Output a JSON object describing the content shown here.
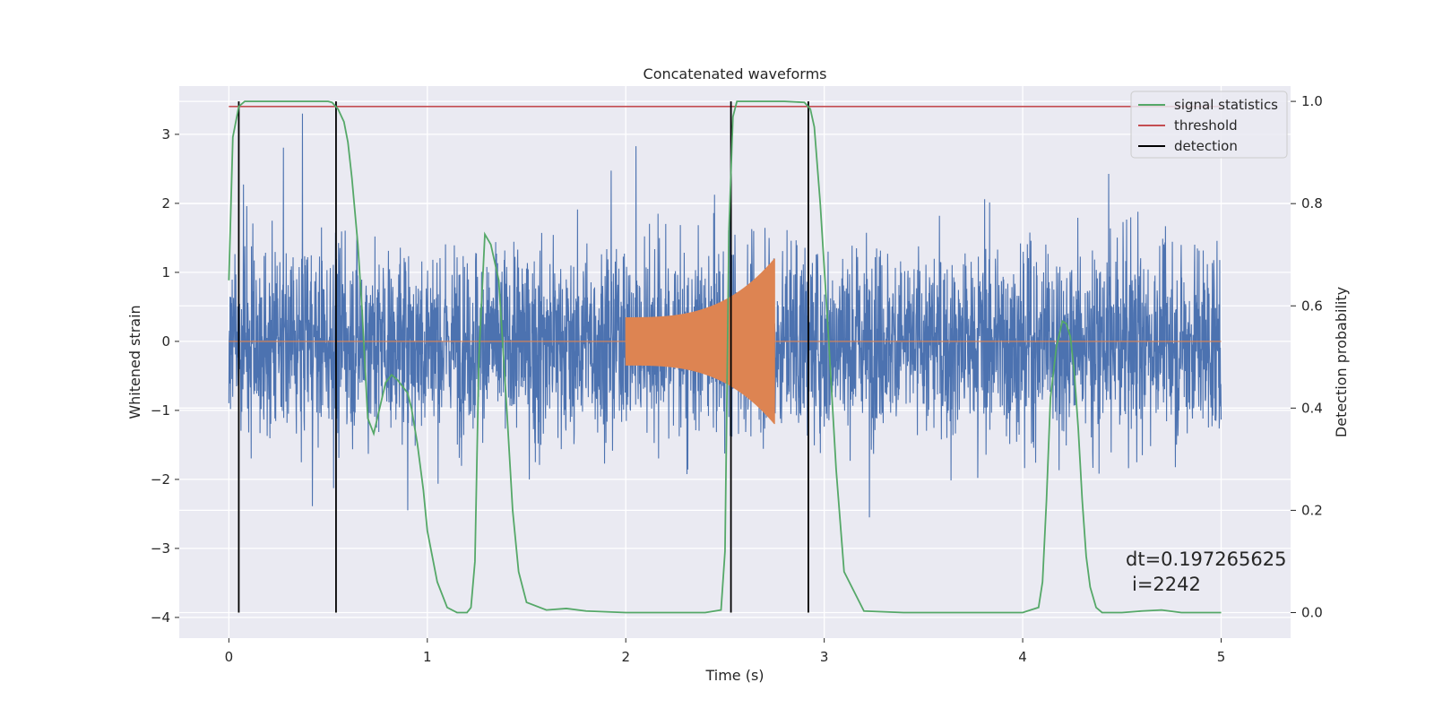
{
  "chart_data": {
    "type": "line",
    "title": "Concatenated waveforms",
    "xlabel": "Time (s)",
    "ylabel": "Whitened strain",
    "ylabel_right": "Detection probability",
    "xlim": [
      -0.25,
      5.35
    ],
    "ylim": [
      -4.3,
      3.7
    ],
    "ylim_right": [
      -0.05,
      1.03
    ],
    "x_ticks": [
      0,
      1,
      2,
      3,
      4,
      5
    ],
    "y_ticks": [
      -4,
      -3,
      -2,
      -1,
      0,
      1,
      2,
      3
    ],
    "y_ticks_right": [
      0.0,
      0.2,
      0.4,
      0.6,
      0.8,
      1.0
    ],
    "grid": true,
    "legend_position": "top-right",
    "colors": {
      "strain": "#4c72b0",
      "injection": "#dd8452",
      "signal_statistics": "#55a868",
      "threshold": "#c44e52",
      "detection": "#000000",
      "background": "#eaeaf2",
      "grid": "#ffffff"
    },
    "legend": [
      {
        "name": "signal statistics",
        "color": "#55a868"
      },
      {
        "name": "threshold",
        "color": "#c44e52"
      },
      {
        "name": "detection",
        "color": "#000000"
      }
    ],
    "strain": {
      "t_start": 0,
      "t_end": 5,
      "typical_amplitude": 1.7,
      "peak_amplitude": 3.3
    },
    "injection": {
      "t_start": 2.0,
      "t_end": 2.75,
      "amplitude_start": 0.35,
      "amplitude_end": 1.2
    },
    "signal_statistics": {
      "x": [
        0.0,
        0.02,
        0.05,
        0.08,
        0.1,
        0.2,
        0.3,
        0.4,
        0.5,
        0.52,
        0.55,
        0.58,
        0.6,
        0.62,
        0.65,
        0.67,
        0.7,
        0.73,
        0.76,
        0.79,
        0.82,
        0.85,
        0.88,
        0.9,
        0.92,
        0.95,
        0.98,
        1.0,
        1.05,
        1.1,
        1.15,
        1.2,
        1.22,
        1.24,
        1.26,
        1.29,
        1.32,
        1.36,
        1.4,
        1.43,
        1.46,
        1.5,
        1.6,
        1.7,
        1.8,
        2.0,
        2.2,
        2.4,
        2.48,
        2.5,
        2.52,
        2.54,
        2.56,
        2.6,
        2.7,
        2.8,
        2.9,
        2.93,
        2.95,
        2.98,
        3.02,
        3.06,
        3.1,
        3.2,
        3.4,
        3.6,
        3.8,
        4.0,
        4.08,
        4.1,
        4.12,
        4.14,
        4.17,
        4.2,
        4.22,
        4.24,
        4.26,
        4.28,
        4.3,
        4.32,
        4.34,
        4.37,
        4.4,
        4.5,
        4.6,
        4.7,
        4.8,
        5.0
      ],
      "y": [
        0.65,
        0.93,
        0.99,
        1.0,
        1.0,
        1.0,
        1.0,
        1.0,
        1.0,
        0.998,
        0.985,
        0.96,
        0.92,
        0.85,
        0.72,
        0.6,
        0.38,
        0.35,
        0.4,
        0.45,
        0.465,
        0.455,
        0.44,
        0.43,
        0.4,
        0.33,
        0.24,
        0.16,
        0.06,
        0.01,
        0.0,
        0.0,
        0.01,
        0.1,
        0.5,
        0.74,
        0.72,
        0.65,
        0.4,
        0.2,
        0.08,
        0.02,
        0.005,
        0.008,
        0.003,
        0.0,
        0.0,
        0.0,
        0.005,
        0.12,
        0.75,
        0.97,
        1.0,
        1.0,
        1.0,
        1.0,
        0.998,
        0.985,
        0.95,
        0.8,
        0.55,
        0.28,
        0.08,
        0.003,
        0.0,
        0.0,
        0.0,
        0.0,
        0.01,
        0.06,
        0.22,
        0.42,
        0.52,
        0.57,
        0.565,
        0.54,
        0.47,
        0.36,
        0.22,
        0.11,
        0.05,
        0.01,
        0.0,
        0.0,
        0.003,
        0.005,
        0.0,
        0.0
      ]
    },
    "threshold": {
      "value": 0.99,
      "x": [
        0,
        5
      ]
    },
    "detections": [
      0.05,
      0.54,
      2.53,
      2.92
    ],
    "annotations": [
      "dt=0.197265625",
      "i=2242"
    ]
  }
}
